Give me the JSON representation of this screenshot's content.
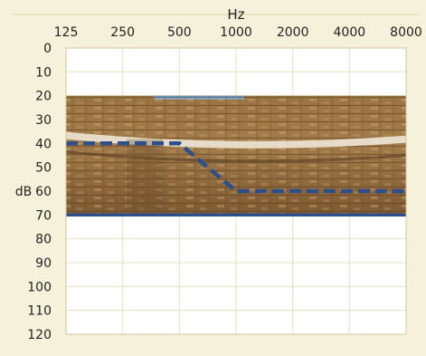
{
  "chart_data": {
    "type": "line",
    "title": "",
    "xlabel": "Hz",
    "ylabel": "dB",
    "x": [
      125,
      250,
      500,
      1000,
      2000,
      4000,
      8000
    ],
    "x_tick_labels": [
      "125",
      "250",
      "500",
      "1000",
      "2000",
      "4000",
      "8000"
    ],
    "x_scale": "log",
    "y_tick_labels": [
      "0",
      "10",
      "20",
      "30",
      "40",
      "50",
      "60",
      "70",
      "80",
      "90",
      "100",
      "110",
      "120"
    ],
    "ylim": [
      0,
      120
    ],
    "y_inverted": true,
    "grid": true,
    "shaded_band": {
      "from_db": 20,
      "to_db": 70,
      "fill": "photo of stone amphitheater seating"
    },
    "series": [
      {
        "style": "dashed",
        "color": "#2e4f8c",
        "points": [
          {
            "x": 125,
            "y": 40
          },
          {
            "x": 250,
            "y": 40
          },
          {
            "x": 500,
            "y": 40
          },
          {
            "x": 1000,
            "y": 60
          },
          {
            "x": 2000,
            "y": 60
          },
          {
            "x": 4000,
            "y": 60
          },
          {
            "x": 8000,
            "y": 60
          }
        ]
      },
      {
        "style": "solid",
        "color": "#2e4f8c",
        "points": [
          {
            "x": 125,
            "y": 70
          },
          {
            "x": 250,
            "y": 70
          },
          {
            "x": 500,
            "y": 70
          },
          {
            "x": 1000,
            "y": 70
          },
          {
            "x": 2000,
            "y": 70
          },
          {
            "x": 4000,
            "y": 70
          },
          {
            "x": 8000,
            "y": 70
          }
        ]
      }
    ]
  },
  "colors": {
    "page_background": "#f6f1da",
    "plot_background": "#ffffff",
    "grid": "#e6e0bd",
    "line": "#2e4f8c"
  }
}
